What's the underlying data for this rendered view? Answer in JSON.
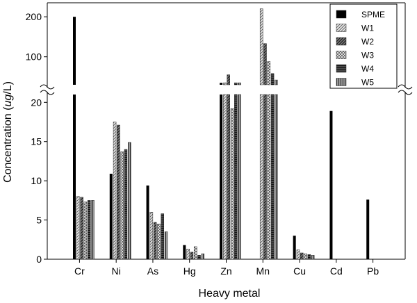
{
  "chart_data": {
    "type": "bar",
    "categories": [
      "Cr",
      "Ni",
      "As",
      "Hg",
      "Zn",
      "Mn",
      "Cu",
      "Cd",
      "Pb"
    ],
    "series": [
      {
        "name": "SPME",
        "values": [
          200,
          10.9,
          9.4,
          1.8,
          35,
          0,
          3.0,
          18.9,
          7.6
        ]
      },
      {
        "name": "W1",
        "values": [
          8.0,
          17.5,
          6.0,
          1.3,
          35,
          220,
          1.2,
          0,
          0
        ]
      },
      {
        "name": "W2",
        "values": [
          7.9,
          17.1,
          4.7,
          0.9,
          55,
          133,
          0.8,
          0,
          0
        ]
      },
      {
        "name": "W3",
        "values": [
          7.3,
          13.7,
          4.5,
          1.6,
          19.2,
          88,
          0.7,
          0,
          0
        ]
      },
      {
        "name": "W4",
        "values": [
          7.5,
          14.0,
          5.8,
          0.5,
          35,
          58,
          0.6,
          0,
          0
        ]
      },
      {
        "name": "W5",
        "values": [
          7.5,
          14.9,
          3.5,
          0.7,
          35,
          42,
          0.5,
          0,
          0
        ]
      }
    ],
    "xlabel": "Heavy metal",
    "ylabel_prefix": "Concentration (",
    "ylabel_unit": "ug",
    "ylabel_suffix": "/L)",
    "y_axis_break": true,
    "ylim_lower": [
      0,
      21
    ],
    "ylim_upper": [
      30,
      235
    ],
    "yticks_lower": [
      "0",
      "5",
      "10",
      "15",
      "20"
    ],
    "yticks_upper": [
      "100",
      "200"
    ],
    "legend_position": "top-right",
    "grid": false,
    "colors": {
      "SPME": "#000000",
      "W1": "#d9d9d9",
      "W2": "#6e6e6e",
      "W3": "#bfbfbf",
      "W4": "#474747",
      "W5": "#8f8f8f"
    }
  }
}
